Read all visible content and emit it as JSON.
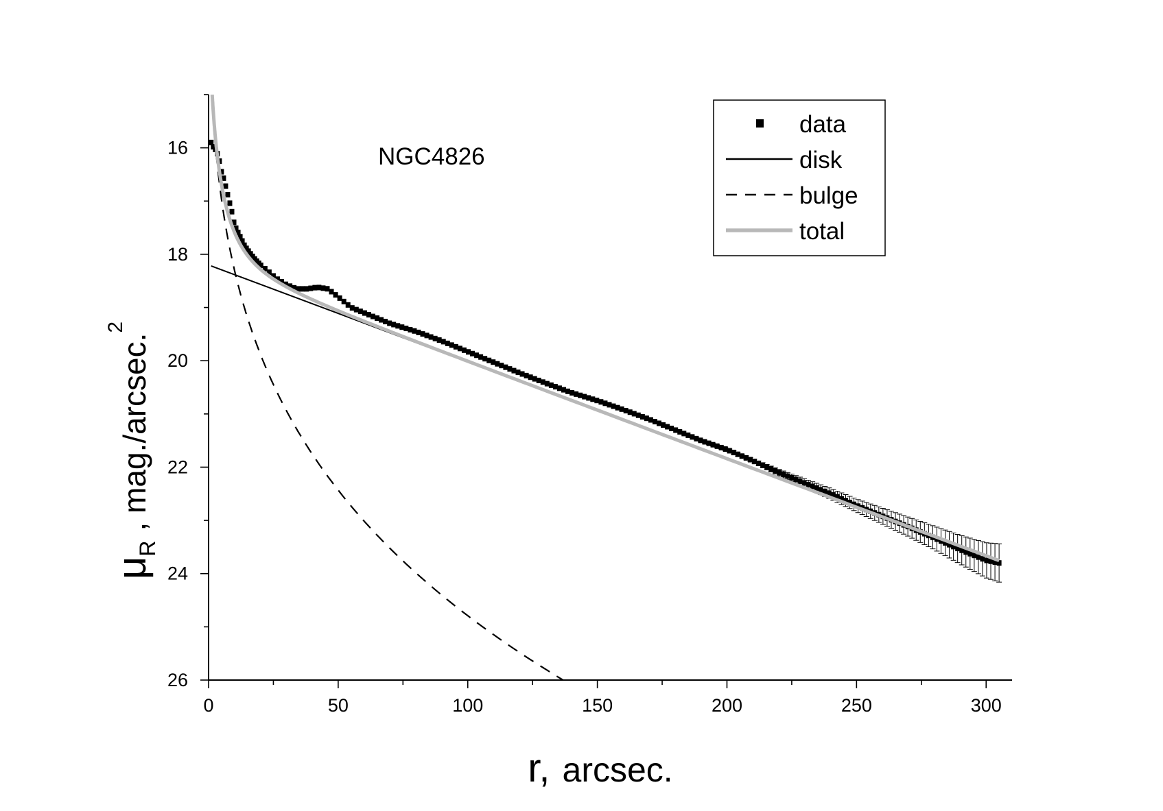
{
  "chart_data": {
    "type": "scatter",
    "annotation": "NGC4826",
    "xlabel": {
      "main": "r,",
      "unit": "arcsec."
    },
    "ylabel": {
      "symbol": "μ",
      "subscript": "R",
      "unit": "mag./arcsec.",
      "superscript": "2"
    },
    "xlim": [
      0,
      310
    ],
    "ylim": [
      26,
      15
    ],
    "y_inverted": true,
    "x_ticks": [
      0,
      50,
      100,
      150,
      200,
      250,
      300
    ],
    "x_tick_labels": [
      "0",
      "50",
      "100",
      "150",
      "200",
      "250",
      "300"
    ],
    "y_ticks": [
      16,
      18,
      20,
      22,
      24,
      26
    ],
    "y_tick_labels": [
      "16",
      "18",
      "20",
      "22",
      "24",
      "26"
    ],
    "grid": false,
    "legend_position": "top-right",
    "legend": [
      {
        "label": "data",
        "style": "square-marker",
        "color": "#000000"
      },
      {
        "label": "disk",
        "style": "solid-line",
        "color": "#000000"
      },
      {
        "label": "bulge",
        "style": "dashed-line",
        "color": "#000000"
      },
      {
        "label": "total",
        "style": "thick-solid-line",
        "color": "#b8b8b8"
      }
    ],
    "models": {
      "disk": {
        "form": "linear",
        "mu0": 18.2,
        "slope_per_arcsec": 0.01823,
        "x_range": [
          1,
          305
        ]
      },
      "bulge": {
        "form": "de_vaucouleurs",
        "mu_at_r1": 14.65,
        "b_per_quarter_root": 4.69,
        "x_range": [
          1,
          220
        ]
      },
      "total": {
        "form": "disk_plus_bulge_in_flux",
        "x_range": [
          1.2,
          305
        ]
      }
    },
    "series": [
      {
        "name": "data",
        "r": [
          1,
          2,
          3,
          4,
          5,
          6,
          7,
          8,
          9,
          10,
          12,
          14,
          16,
          18,
          20,
          23,
          26,
          30,
          34,
          38,
          42,
          46,
          50,
          55,
          60,
          65,
          70,
          80,
          90,
          100,
          110,
          120,
          130,
          140,
          150,
          153,
          160,
          170,
          180,
          190,
          200,
          210,
          220,
          230,
          240,
          250,
          260,
          270,
          280,
          290,
          300,
          305
        ],
        "mu": [
          15.9,
          16.0,
          16.05,
          16.2,
          16.45,
          16.6,
          16.8,
          17.0,
          17.2,
          17.45,
          17.65,
          17.85,
          17.98,
          18.1,
          18.2,
          18.32,
          18.45,
          18.57,
          18.65,
          18.65,
          18.62,
          18.65,
          18.8,
          19.0,
          19.1,
          19.2,
          19.3,
          19.45,
          19.63,
          19.83,
          20.03,
          20.23,
          20.42,
          20.6,
          20.75,
          20.8,
          20.92,
          21.1,
          21.3,
          21.5,
          21.67,
          21.88,
          22.1,
          22.3,
          22.5,
          22.72,
          22.92,
          23.12,
          23.33,
          23.55,
          23.75,
          23.8
        ],
        "err": [
          0,
          0,
          0,
          0,
          0,
          0,
          0,
          0,
          0,
          0,
          0,
          0,
          0,
          0,
          0,
          0,
          0,
          0,
          0,
          0,
          0,
          0,
          0,
          0,
          0,
          0,
          0,
          0,
          0,
          0,
          0,
          0,
          0,
          0,
          0,
          0,
          0,
          0,
          0,
          0.02,
          0.03,
          0.04,
          0.06,
          0.08,
          0.1,
          0.12,
          0.15,
          0.18,
          0.22,
          0.27,
          0.33,
          0.36
        ]
      }
    ]
  }
}
